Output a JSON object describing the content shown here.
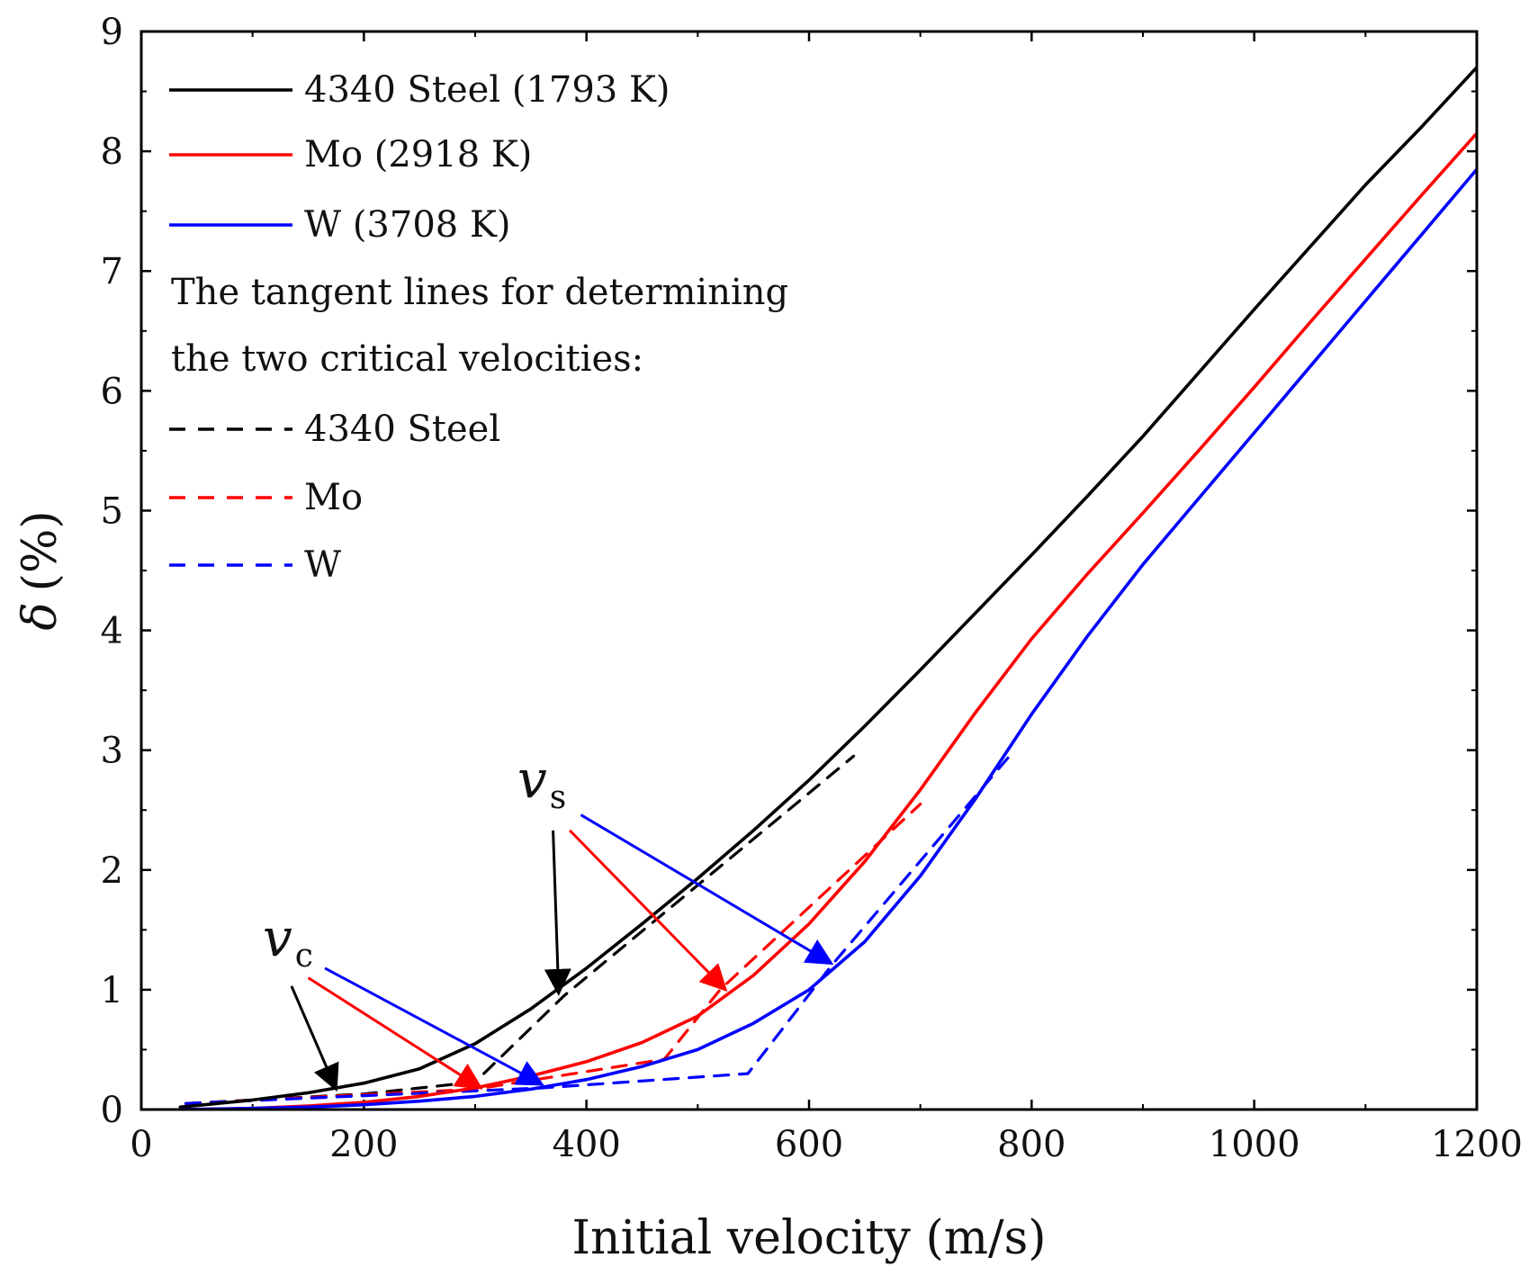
{
  "chart_data": {
    "type": "line",
    "xlabel": "Initial velocity (m/s)",
    "ylabel_symbol": "δ",
    "ylabel_unit": "(%)",
    "xlim": [
      0,
      1200
    ],
    "ylim": [
      0,
      9
    ],
    "xticks": [
      0,
      200,
      400,
      600,
      800,
      1000,
      1200
    ],
    "yticks": [
      0,
      1,
      2,
      3,
      4,
      5,
      6,
      7,
      8,
      9
    ],
    "series": [
      {
        "name": "4340 Steel (1793 K)",
        "color": "#000000",
        "style": "solid",
        "x": [
          35,
          100,
          150,
          200,
          250,
          300,
          350,
          400,
          450,
          500,
          550,
          600,
          650,
          700,
          750,
          800,
          850,
          900,
          950,
          1000,
          1050,
          1100,
          1150,
          1200
        ],
        "y": [
          0.02,
          0.08,
          0.14,
          0.22,
          0.34,
          0.55,
          0.84,
          1.18,
          1.55,
          1.93,
          2.33,
          2.75,
          3.2,
          3.67,
          4.15,
          4.63,
          5.12,
          5.62,
          6.15,
          6.68,
          7.2,
          7.72,
          8.2,
          8.7
        ]
      },
      {
        "name": "Mo (2918 K)",
        "color": "#ff0000",
        "style": "solid",
        "x": [
          35,
          100,
          150,
          200,
          250,
          300,
          350,
          400,
          450,
          500,
          550,
          600,
          650,
          700,
          750,
          800,
          850,
          900,
          950,
          1000,
          1050,
          1100,
          1150,
          1200
        ],
        "y": [
          0.0,
          0.01,
          0.03,
          0.06,
          0.11,
          0.18,
          0.28,
          0.4,
          0.56,
          0.78,
          1.12,
          1.55,
          2.07,
          2.67,
          3.32,
          3.93,
          4.47,
          4.98,
          5.5,
          6.03,
          6.57,
          7.1,
          7.63,
          8.15
        ]
      },
      {
        "name": "W (3708 K)",
        "color": "#0000ff",
        "style": "solid",
        "x": [
          35,
          100,
          150,
          200,
          250,
          300,
          350,
          400,
          450,
          500,
          550,
          600,
          650,
          700,
          750,
          800,
          850,
          900,
          950,
          1000,
          1050,
          1100,
          1150,
          1200
        ],
        "y": [
          0.0,
          0.01,
          0.02,
          0.04,
          0.07,
          0.11,
          0.17,
          0.25,
          0.36,
          0.5,
          0.72,
          1.0,
          1.4,
          1.95,
          2.6,
          3.3,
          3.95,
          4.55,
          5.1,
          5.65,
          6.2,
          6.75,
          7.3,
          7.85
        ]
      },
      {
        "name": "4340 Steel",
        "color": "#000000",
        "style": "dashed",
        "x": [
          40,
          200,
          300,
          380,
          640
        ],
        "y": [
          0.05,
          0.13,
          0.23,
          0.95,
          2.95
        ]
      },
      {
        "name": "Mo",
        "color": "#ff0000",
        "style": "dashed",
        "x": [
          40,
          300,
          470,
          520,
          700
        ],
        "y": [
          0.05,
          0.17,
          0.42,
          1.0,
          2.55
        ]
      },
      {
        "name": "W",
        "color": "#0000ff",
        "style": "dashed",
        "x": [
          40,
          360,
          545,
          620,
          780
        ],
        "y": [
          0.05,
          0.18,
          0.3,
          1.2,
          2.95
        ]
      }
    ],
    "legend": {
      "position": "top-left",
      "heading_line1": "The tangent lines for determining",
      "heading_line2": "the two critical velocities:"
    },
    "annotations": {
      "vc": {
        "symbol": "v",
        "subscript": "c",
        "arrows": [
          {
            "series": "4340 Steel",
            "color": "#000000",
            "from": [
              135,
              1.03
            ],
            "to": [
              175,
              0.17
            ]
          },
          {
            "series": "Mo",
            "color": "#ff0000",
            "from": [
              150,
              1.1
            ],
            "to": [
              305,
              0.18
            ]
          },
          {
            "series": "W",
            "color": "#0000ff",
            "from": [
              165,
              1.18
            ],
            "to": [
              360,
              0.21
            ]
          }
        ]
      },
      "vs": {
        "symbol": "v",
        "subscript": "s",
        "arrows": [
          {
            "series": "4340 Steel",
            "color": "#000000",
            "from": [
              370,
              2.33
            ],
            "to": [
              375,
              0.97
            ]
          },
          {
            "series": "Mo",
            "color": "#ff0000",
            "from": [
              385,
              2.33
            ],
            "to": [
              525,
              1.0
            ]
          },
          {
            "series": "W",
            "color": "#0000ff",
            "from": [
              395,
              2.46
            ],
            "to": [
              620,
              1.22
            ]
          }
        ]
      }
    }
  }
}
